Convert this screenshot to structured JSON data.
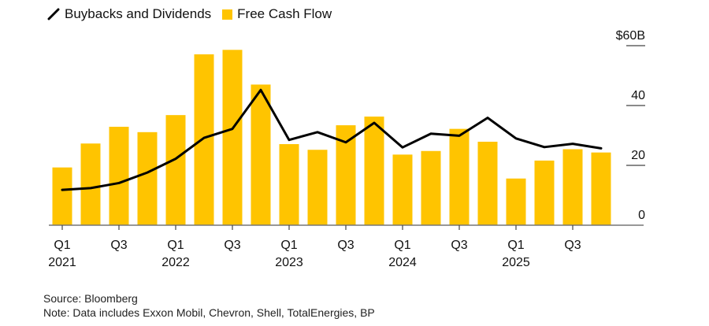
{
  "colors": {
    "bar": "#FFC400",
    "line": "#000000",
    "axis": "#777777",
    "text": "#111111"
  },
  "legend": [
    {
      "label": "Buybacks and Dividends",
      "kind": "line"
    },
    {
      "label": "Free Cash Flow",
      "kind": "bar"
    }
  ],
  "footer": {
    "source": "Source: Bloomberg",
    "note": "Note: Data includes Exxon Mobil, Chevron, Shell, TotalEnergies, BP"
  },
  "chart_data": {
    "type": "bar",
    "title": "",
    "xlabel": "",
    "ylabel": "",
    "ylim": [
      0,
      60
    ],
    "yticks": [
      {
        "value": 60,
        "label": "$60B"
      },
      {
        "value": 40,
        "label": "40"
      },
      {
        "value": 20,
        "label": "20"
      },
      {
        "value": 0,
        "label": "0"
      }
    ],
    "y_axis_position": "right",
    "grid": false,
    "legend_position": "top-left",
    "categories": [
      "Q1 2021",
      "Q2 2021",
      "Q3 2021",
      "Q4 2021",
      "Q1 2022",
      "Q2 2022",
      "Q3 2022",
      "Q4 2022",
      "Q1 2023",
      "Q2 2023",
      "Q3 2023",
      "Q4 2023",
      "Q1 2024",
      "Q2 2024",
      "Q3 2024",
      "Q4 2024",
      "Q1 2025",
      "Q2 2025",
      "Q3 2025",
      "Q4 2025"
    ],
    "xtick_labels": [
      {
        "index": 0,
        "line1": "Q1",
        "line2": "2021"
      },
      {
        "index": 2,
        "line1": "Q3",
        "line2": ""
      },
      {
        "index": 4,
        "line1": "Q1",
        "line2": "2022"
      },
      {
        "index": 6,
        "line1": "Q3",
        "line2": ""
      },
      {
        "index": 8,
        "line1": "Q1",
        "line2": "2023"
      },
      {
        "index": 10,
        "line1": "Q3",
        "line2": ""
      },
      {
        "index": 12,
        "line1": "Q1",
        "line2": "2024"
      },
      {
        "index": 14,
        "line1": "Q3",
        "line2": ""
      },
      {
        "index": 16,
        "line1": "Q1",
        "line2": "2025"
      },
      {
        "index": 18,
        "line1": "Q3",
        "line2": ""
      }
    ],
    "series": [
      {
        "name": "Free Cash Flow",
        "type": "bar",
        "values": [
          19.3,
          27.3,
          32.9,
          31.1,
          36.8,
          57.1,
          58.6,
          47.0,
          27.1,
          25.2,
          33.4,
          36.3,
          23.6,
          24.8,
          32.2,
          27.9,
          15.6,
          21.6,
          25.4,
          24.3
        ]
      },
      {
        "name": "Buybacks and Dividends",
        "type": "line",
        "values": [
          11.8,
          12.4,
          14.1,
          17.6,
          22.2,
          29.2,
          32.2,
          45.2,
          28.5,
          31.1,
          27.7,
          34.2,
          26.0,
          30.6,
          29.9,
          35.9,
          29.0,
          26.1,
          27.2,
          25.7
        ]
      }
    ]
  }
}
